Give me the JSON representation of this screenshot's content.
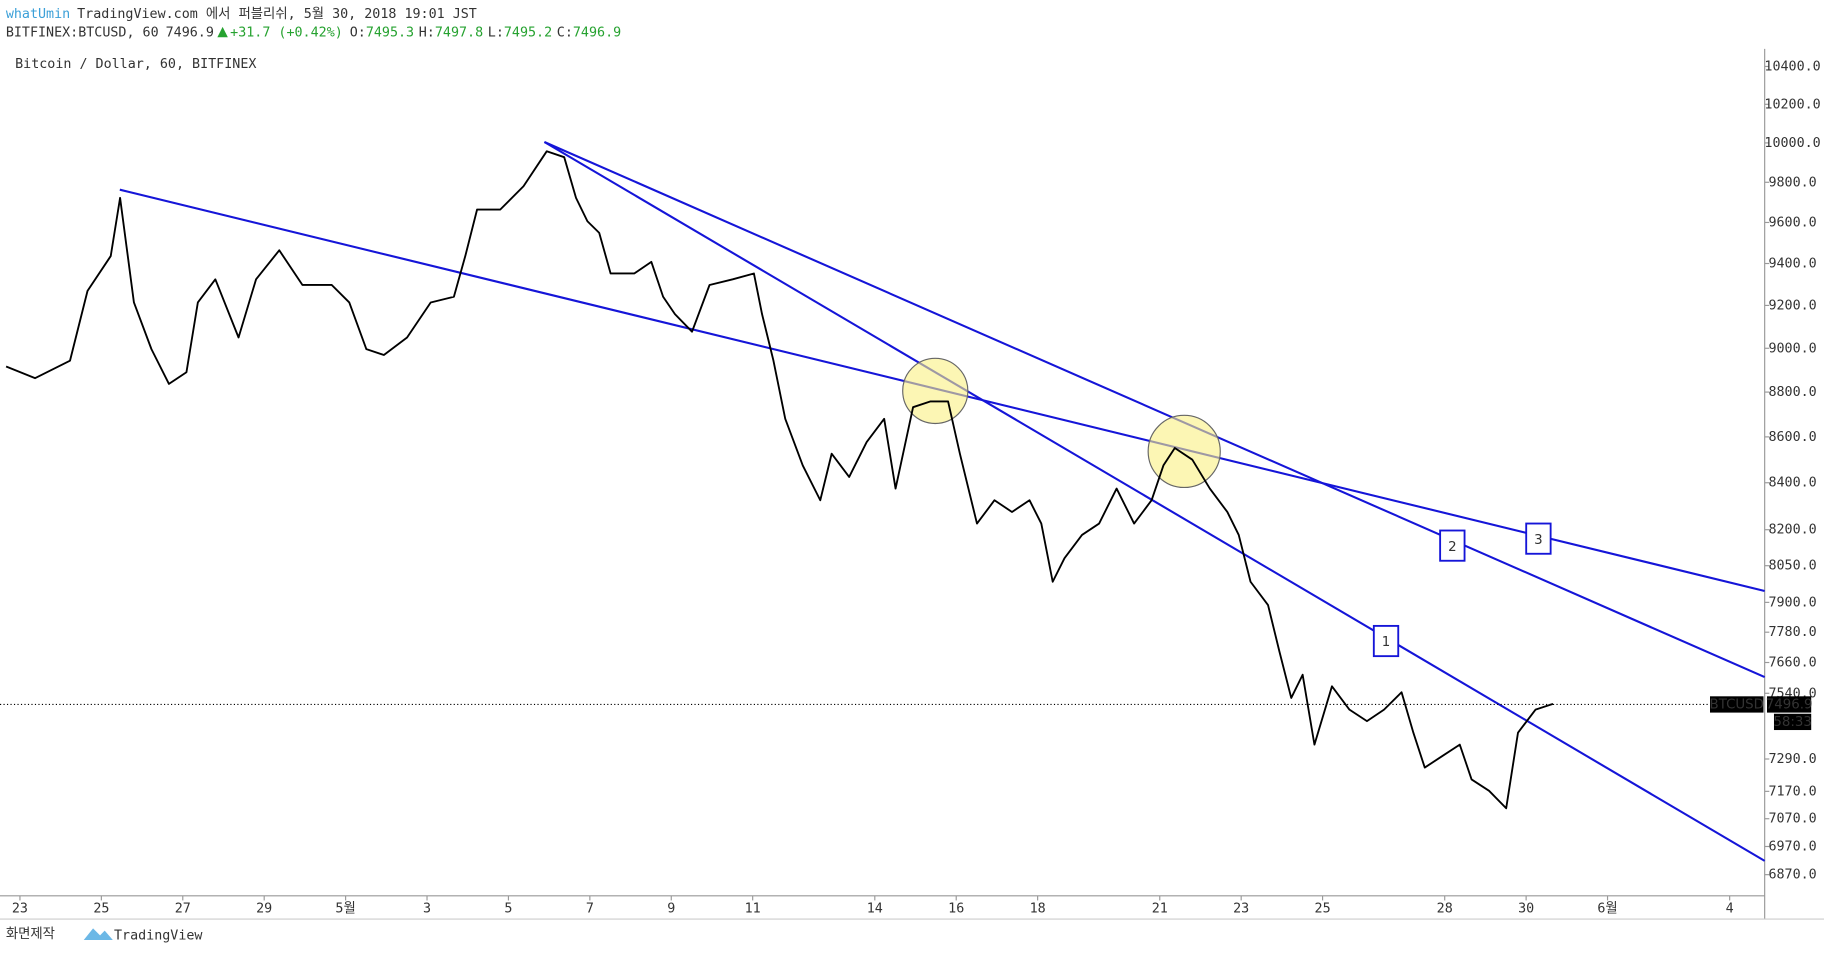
{
  "header": {
    "author": "whatUmin",
    "publish": "TradingView.com 에서 퍼블리쉬, 5월 30, 2018 19:01 JST",
    "symbol": "BITFINEX:BTCUSD, 60",
    "last": 7496.9,
    "change": "+31.7 (+0.42%)",
    "ohlc": [
      {
        "label": "O:",
        "value": 7495.3
      },
      {
        "label": "H:",
        "value": 7497.8
      },
      {
        "label": "L:",
        "value": 7495.2
      },
      {
        "label": "C:",
        "value": 7496.9
      }
    ]
  },
  "chart_data": {
    "type": "line",
    "title": "Bitcoin / Dollar, 60, BITFINEX",
    "log_scale": true,
    "x": [
      -0.34,
      0.37,
      1.23,
      1.66,
      2.23,
      2.46,
      2.8,
      3.23,
      3.66,
      4.09,
      4.37,
      4.8,
      5.37,
      5.8,
      6.37,
      6.94,
      7.66,
      8.09,
      8.51,
      8.94,
      9.51,
      10.09,
      10.66,
      10.94,
      11.23,
      11.8,
      12.37,
      12.94,
      13.37,
      13.66,
      13.94,
      14.23,
      14.51,
      15.09,
      15.51,
      15.8,
      16.09,
      16.51,
      16.94,
      17.51,
      18.03,
      18.23,
      18.51,
      18.8,
      19.23,
      19.66,
      19.94,
      20.37,
      20.8,
      21.23,
      21.51,
      21.94,
      22.37,
      22.8,
      23.09,
      23.51,
      23.94,
      24.37,
      24.8,
      25.09,
      25.37,
      25.66,
      26.09,
      26.51,
      26.94,
      27.37,
      27.8,
      28.09,
      28.37,
      28.8,
      29.23,
      29.66,
      29.94,
      30.23,
      30.66,
      30.94,
      31.23,
      31.51,
      31.8,
      32.23,
      32.66,
      33.09,
      33.51,
      33.94,
      34.23,
      34.51,
      34.94,
      35.37,
      35.66,
      36.09,
      36.51,
      36.8,
      37.23,
      37.66
    ],
    "series": [
      {
        "name": "BTCUSD",
        "color": "#000000",
        "values": [
          8916,
          8863,
          8943,
          9269,
          9436,
          9722,
          9214,
          8996,
          8837,
          8890,
          9214,
          9324,
          9050,
          9324,
          9464,
          9297,
          9297,
          9214,
          8996,
          8969,
          9050,
          9214,
          9241,
          9436,
          9664,
          9664,
          9780,
          9957,
          9927,
          9722,
          9606,
          9549,
          9352,
          9352,
          9408,
          9241,
          9159,
          9077,
          9297,
          9324,
          9352,
          9159,
          8943,
          8680,
          8475,
          8325,
          8526,
          8425,
          8577,
          8680,
          8375,
          8732,
          8758,
          8758,
          8526,
          8226,
          8325,
          8275,
          8325,
          8226,
          7984,
          8081,
          8178,
          8226,
          8375,
          8226,
          8325,
          8475,
          8551,
          8500,
          8375,
          8275,
          8178,
          7984,
          7889,
          7703,
          7522,
          7612,
          7344,
          7567,
          7477,
          7433,
          7477,
          7544,
          7389,
          7258,
          7301,
          7344,
          7214,
          7172,
          7108,
          7389,
          7477,
          7499
        ]
      }
    ],
    "last_price": 7496.9,
    "countdown": "58:33",
    "xlim": [
      -0.49,
      42.86
    ],
    "xticks": [
      {
        "value": 0,
        "label": "23"
      },
      {
        "value": 2,
        "label": "25"
      },
      {
        "value": 4,
        "label": "27"
      },
      {
        "value": 6,
        "label": "29"
      },
      {
        "value": 8,
        "label": "5월"
      },
      {
        "value": 10,
        "label": "3"
      },
      {
        "value": 12,
        "label": "5"
      },
      {
        "value": 14,
        "label": "7"
      },
      {
        "value": 16,
        "label": "9"
      },
      {
        "value": 18,
        "label": "11"
      },
      {
        "value": 21,
        "label": "14"
      },
      {
        "value": 23,
        "label": "16"
      },
      {
        "value": 25,
        "label": "18"
      },
      {
        "value": 28,
        "label": "21"
      },
      {
        "value": 30,
        "label": "23"
      },
      {
        "value": 32,
        "label": "25"
      },
      {
        "value": 35,
        "label": "28"
      },
      {
        "value": 37,
        "label": "30"
      },
      {
        "value": 39,
        "label": "6월"
      },
      {
        "value": 42,
        "label": "4"
      }
    ],
    "ylim": [
      6796,
      10494
    ],
    "yticks": [
      {
        "value": 10400,
        "label": "10400.0"
      },
      {
        "value": 10200,
        "label": "10200.0"
      },
      {
        "value": 10000,
        "label": "10000.0"
      },
      {
        "value": 9800,
        "label": "9800.0"
      },
      {
        "value": 9600,
        "label": "9600.0"
      },
      {
        "value": 9400,
        "label": "9400.0"
      },
      {
        "value": 9200,
        "label": "9200.0"
      },
      {
        "value": 9000,
        "label": "9000.0"
      },
      {
        "value": 8800,
        "label": "8800.0"
      },
      {
        "value": 8600,
        "label": "8600.0"
      },
      {
        "value": 8400,
        "label": "8400.0"
      },
      {
        "value": 8200,
        "label": "8200.0"
      },
      {
        "value": 8050,
        "label": "8050.0"
      },
      {
        "value": 7900,
        "label": "7900.0"
      },
      {
        "value": 7780,
        "label": "7780.0"
      },
      {
        "value": 7660,
        "label": "7660.0"
      },
      {
        "value": 7540,
        "label": "7540.0"
      },
      {
        "value": 7290,
        "label": "7290.0"
      },
      {
        "value": 7170,
        "label": "7170.0"
      },
      {
        "value": 7070,
        "label": "7070.0"
      },
      {
        "value": 6970,
        "label": "6970.0"
      },
      {
        "value": 6870,
        "label": "6870.0"
      }
    ],
    "grid": false,
    "annotations": [
      "1",
      "2",
      "3"
    ]
  },
  "footer": {
    "caption": "화면제작",
    "brand": "TradingView"
  }
}
